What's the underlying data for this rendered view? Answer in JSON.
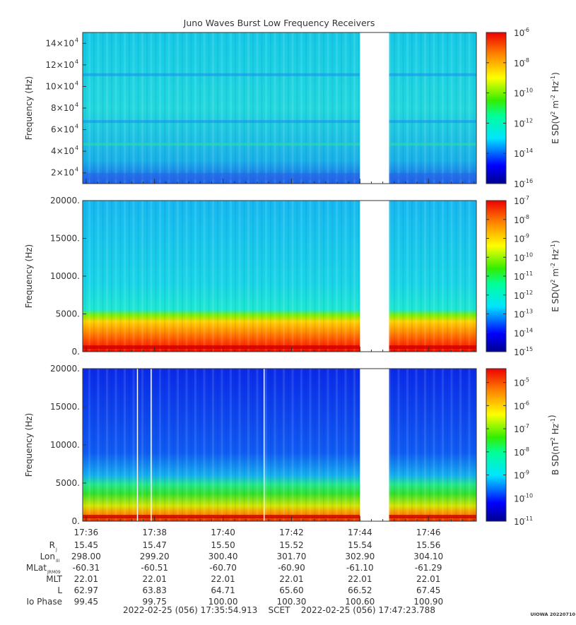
{
  "title": "Juno Waves Burst Low Frequency Receivers",
  "chart_data": [
    {
      "type": "heatmap",
      "panel": "top",
      "ylabel": "Frequency (Hz)",
      "yticks": [
        {
          "value": 20000,
          "mant": "2×10",
          "exp": "4"
        },
        {
          "value": 40000,
          "mant": "4×10",
          "exp": "4"
        },
        {
          "value": 60000,
          "mant": "6×10",
          "exp": "4"
        },
        {
          "value": 80000,
          "mant": "8×10",
          "exp": "4"
        },
        {
          "value": 100000,
          "mant": "10×10",
          "exp": "4"
        },
        {
          "value": 120000,
          "mant": "12×10",
          "exp": "4"
        },
        {
          "value": 140000,
          "mant": "14×10",
          "exp": "4"
        }
      ],
      "ylim": [
        10000,
        150000
      ],
      "colorbar": {
        "label_main": "E SD(V",
        "label_tail": " m",
        "label_tail2": " Hz",
        "sup1": "2",
        "sup2": "-2",
        "sup3": "-1",
        "label_end": ")",
        "ticks": [
          {
            "value": -6,
            "base": "10",
            "exp": "-6"
          },
          {
            "value": -8,
            "base": "10",
            "exp": "-8"
          },
          {
            "value": -10,
            "base": "10",
            "exp": "-10"
          },
          {
            "value": -12,
            "base": "10",
            "exp": "-12"
          },
          {
            "value": -14,
            "base": "10",
            "exp": "-14"
          },
          {
            "value": -16,
            "base": "10",
            "exp": "-16"
          }
        ],
        "range": [
          -16,
          -6
        ]
      }
    },
    {
      "type": "heatmap",
      "panel": "middle",
      "ylabel": "Frequency (Hz)",
      "yticks": [
        {
          "value": 0,
          "label": "0."
        },
        {
          "value": 5000,
          "label": "5000."
        },
        {
          "value": 10000,
          "label": "10000."
        },
        {
          "value": 15000,
          "label": "15000."
        },
        {
          "value": 20000,
          "label": "20000."
        }
      ],
      "ylim": [
        0,
        20000
      ],
      "colorbar": {
        "label_main": "E SD(V",
        "label_tail": " m",
        "label_tail2": " Hz",
        "sup1": "2",
        "sup2": "-2",
        "sup3": "-1",
        "label_end": ")",
        "ticks": [
          {
            "value": -7,
            "base": "10",
            "exp": "-7"
          },
          {
            "value": -8,
            "base": "10",
            "exp": "-8"
          },
          {
            "value": -9,
            "base": "10",
            "exp": "-9"
          },
          {
            "value": -10,
            "base": "10",
            "exp": "-10"
          },
          {
            "value": -11,
            "base": "10",
            "exp": "-11"
          },
          {
            "value": -12,
            "base": "10",
            "exp": "-12"
          },
          {
            "value": -13,
            "base": "10",
            "exp": "-13"
          },
          {
            "value": -14,
            "base": "10",
            "exp": "-14"
          },
          {
            "value": -15,
            "base": "10",
            "exp": "-15"
          }
        ],
        "range": [
          -15,
          -7
        ]
      }
    },
    {
      "type": "heatmap",
      "panel": "bottom",
      "ylabel": "Frequency (Hz)",
      "yticks": [
        {
          "value": 0,
          "label": "0."
        },
        {
          "value": 5000,
          "label": "5000."
        },
        {
          "value": 10000,
          "label": "10000."
        },
        {
          "value": 15000,
          "label": "15000."
        },
        {
          "value": 20000,
          "label": "20000."
        }
      ],
      "ylim": [
        0,
        20000
      ],
      "colorbar": {
        "label_main": "B SD(nT",
        "label_tail": " Hz",
        "label_tail2": "",
        "sup1": "2",
        "sup2": "-1",
        "sup3": "",
        "label_end": ")",
        "ticks": [
          {
            "value": -5,
            "base": "10",
            "exp": "-5"
          },
          {
            "value": -6,
            "base": "10",
            "exp": "-6"
          },
          {
            "value": -7,
            "base": "10",
            "exp": "-7"
          },
          {
            "value": -8,
            "base": "10",
            "exp": "-8"
          },
          {
            "value": -9,
            "base": "10",
            "exp": "-9"
          },
          {
            "value": -10,
            "base": "10",
            "exp": "-10"
          },
          {
            "value": -11,
            "base": "10",
            "exp": "-11"
          }
        ],
        "range": [
          -11,
          -4.4
        ]
      }
    }
  ],
  "time_axis": {
    "ticks": [
      "17:36",
      "17:38",
      "17:40",
      "17:42",
      "17:44",
      "17:46"
    ],
    "start_minutes": 35.9,
    "end_minutes": 47.4,
    "gap_start_minutes": 44.0,
    "gap_end_minutes": 44.85
  },
  "ephemeris": [
    {
      "label": "R",
      "sub": "J",
      "values": [
        "15.45",
        "15.47",
        "15.50",
        "15.52",
        "15.54",
        "15.56"
      ]
    },
    {
      "label": "Lon",
      "sub": "III",
      "values": [
        "298.00",
        "299.20",
        "300.40",
        "301.70",
        "302.90",
        "304.10"
      ]
    },
    {
      "label": "MLat",
      "sub": "JRM09",
      "values": [
        "-60.31",
        "-60.51",
        "-60.70",
        "-60.90",
        "-61.10",
        "-61.29"
      ]
    },
    {
      "label": "MLT",
      "sub": "",
      "values": [
        "22.01",
        "22.01",
        "22.01",
        "22.01",
        "22.01",
        "22.01"
      ]
    },
    {
      "label": "L",
      "sub": "",
      "values": [
        "62.97",
        "63.83",
        "64.71",
        "65.60",
        "66.52",
        "67.45"
      ]
    },
    {
      "label": "Io Phase",
      "sub": "",
      "values": [
        "99.45",
        "99.75",
        "100.00",
        "100.30",
        "100.60",
        "100.90"
      ]
    }
  ],
  "footer": {
    "range_text": "2022-02-25 (056) 17:35:54.913    SCET    2022-02-25 (056) 17:47:23.788",
    "stamp": "UIOWA 20220710"
  }
}
